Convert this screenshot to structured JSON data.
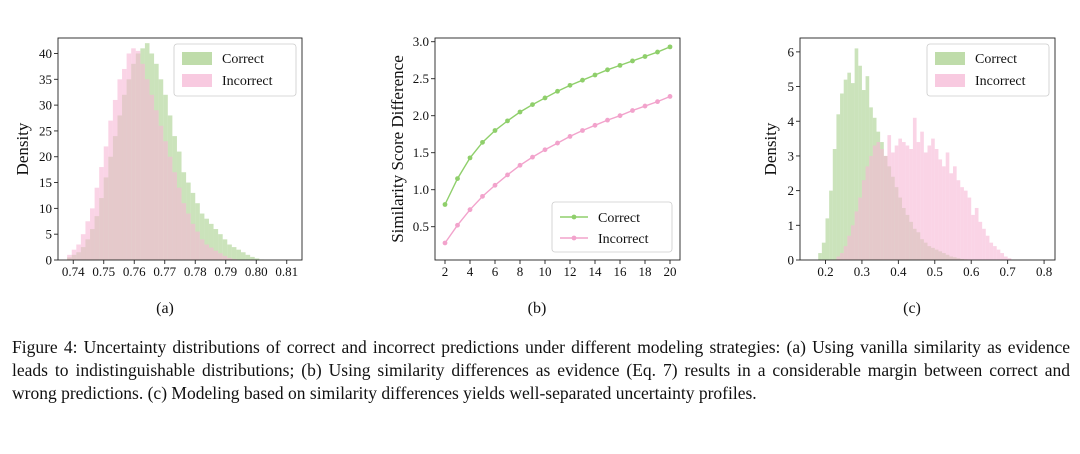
{
  "caption": "Figure 4: Uncertainty distributions of correct and incorrect predictions under different modeling strategies: (a) Using vanilla similarity as evidence leads to indistinguishable distributions; (b) Using similarity differences as evidence (Eq. 7) results in a considerable margin between correct and wrong predictions. (c) Modeling based on similarity differences yields well-separated uncertainty profiles.",
  "colors": {
    "correct": "#a9d08e",
    "incorrect": "#f6b8d6",
    "correct_line": "#8fcf6b",
    "incorrect_line": "#f2a3cc"
  },
  "chart_data": [
    {
      "type": "histogram",
      "panel_label": "(a)",
      "ylabel": "Density",
      "xlim": [
        0.735,
        0.815
      ],
      "ylim": [
        0,
        43
      ],
      "xticks": [
        "0.74",
        "0.75",
        "0.76",
        "0.77",
        "0.78",
        "0.79",
        "0.80",
        "0.81"
      ],
      "yticks": [
        "0",
        "5",
        "10",
        "15",
        "20",
        "25",
        "30",
        "35",
        "40"
      ],
      "legend_position": "top-right",
      "bin_start": 0.738,
      "bin_width": 0.0015,
      "series": [
        {
          "name": "Correct",
          "values": [
            0.5,
            1,
            1.5,
            2.5,
            4,
            6,
            8.5,
            12,
            16,
            20,
            24,
            28,
            32,
            35,
            38,
            40,
            41,
            42,
            40,
            38,
            35,
            32,
            28,
            24,
            21,
            17,
            15,
            13,
            11,
            9,
            8,
            7,
            6,
            5,
            4,
            3,
            2.5,
            2,
            1.5,
            1,
            0.6,
            0.3,
            0.1
          ]
        },
        {
          "name": "Incorrect",
          "values": [
            1,
            2,
            3,
            5,
            7.5,
            10,
            14,
            18,
            22,
            27,
            31,
            35,
            37,
            40,
            41,
            40.5,
            38,
            35,
            32,
            29,
            26,
            23,
            20,
            17,
            14,
            11,
            9,
            7,
            5.5,
            4,
            3,
            2.4,
            1.8,
            1.3,
            0.8,
            0.4,
            0.2,
            0.1,
            0,
            0,
            0,
            0,
            0
          ]
        }
      ]
    },
    {
      "type": "line",
      "panel_label": "(b)",
      "ylabel": "Similarity Score Difference",
      "xlim": [
        1.2,
        20.8
      ],
      "ylim": [
        0.05,
        3.05
      ],
      "xticks": [
        "2",
        "4",
        "6",
        "8",
        "10",
        "12",
        "14",
        "16",
        "18",
        "20"
      ],
      "yticks": [
        "0.5",
        "1.0",
        "1.5",
        "2.0",
        "2.5",
        "3.0"
      ],
      "legend_position": "bottom-right",
      "x": [
        2,
        3,
        4,
        5,
        6,
        7,
        8,
        9,
        10,
        11,
        12,
        13,
        14,
        15,
        16,
        17,
        18,
        19,
        20
      ],
      "series": [
        {
          "name": "Correct",
          "values": [
            0.8,
            1.15,
            1.43,
            1.64,
            1.8,
            1.93,
            2.05,
            2.15,
            2.24,
            2.33,
            2.41,
            2.48,
            2.55,
            2.62,
            2.68,
            2.74,
            2.8,
            2.86,
            2.93
          ]
        },
        {
          "name": "Incorrect",
          "values": [
            0.28,
            0.52,
            0.73,
            0.91,
            1.06,
            1.2,
            1.33,
            1.44,
            1.54,
            1.63,
            1.72,
            1.8,
            1.87,
            1.94,
            2.0,
            2.07,
            2.13,
            2.19,
            2.26
          ]
        }
      ]
    },
    {
      "type": "histogram",
      "panel_label": "(c)",
      "ylabel": "Density",
      "xlim": [
        0.13,
        0.83
      ],
      "ylim": [
        0,
        6.4
      ],
      "xticks": [
        "0.2",
        "0.3",
        "0.4",
        "0.5",
        "0.6",
        "0.7",
        "0.8"
      ],
      "yticks": [
        "0",
        "1",
        "2",
        "3",
        "4",
        "5",
        "6"
      ],
      "legend_position": "top-right",
      "bin_start": 0.18,
      "bin_width": 0.01,
      "series": [
        {
          "name": "Correct",
          "values": [
            0.2,
            0.5,
            1.2,
            2.0,
            3.2,
            4.2,
            4.8,
            5.2,
            5.4,
            5.1,
            6.1,
            5.6,
            4.9,
            5.3,
            4.4,
            4.1,
            3.7,
            3.4,
            3.0,
            2.7,
            2.4,
            2.1,
            1.8,
            1.5,
            1.3,
            1.1,
            0.9,
            0.8,
            0.6,
            0.5,
            0.4,
            0.35,
            0.3,
            0.25,
            0.2,
            0.15,
            0.1,
            0.08,
            0.05,
            0.03,
            0.02,
            0.01,
            0,
            0,
            0,
            0,
            0,
            0,
            0,
            0,
            0,
            0,
            0,
            0
          ]
        },
        {
          "name": "Incorrect",
          "values": [
            0,
            0,
            0,
            0,
            0,
            0.1,
            0.2,
            0.4,
            0.7,
            1.0,
            1.4,
            1.8,
            2.3,
            2.7,
            3.0,
            3.3,
            3.4,
            3.2,
            3.0,
            3.6,
            3.1,
            3.3,
            3.5,
            3.4,
            3.3,
            3.2,
            4.1,
            3.4,
            3.7,
            3.1,
            3.3,
            3.5,
            3.2,
            2.9,
            2.7,
            3.1,
            2.5,
            2.7,
            2.3,
            2.1,
            2.0,
            1.8,
            1.3,
            1.5,
            1.1,
            0.9,
            0.7,
            0.5,
            0.4,
            0.3,
            0.2,
            0.1,
            0.05,
            0
          ]
        }
      ]
    }
  ]
}
